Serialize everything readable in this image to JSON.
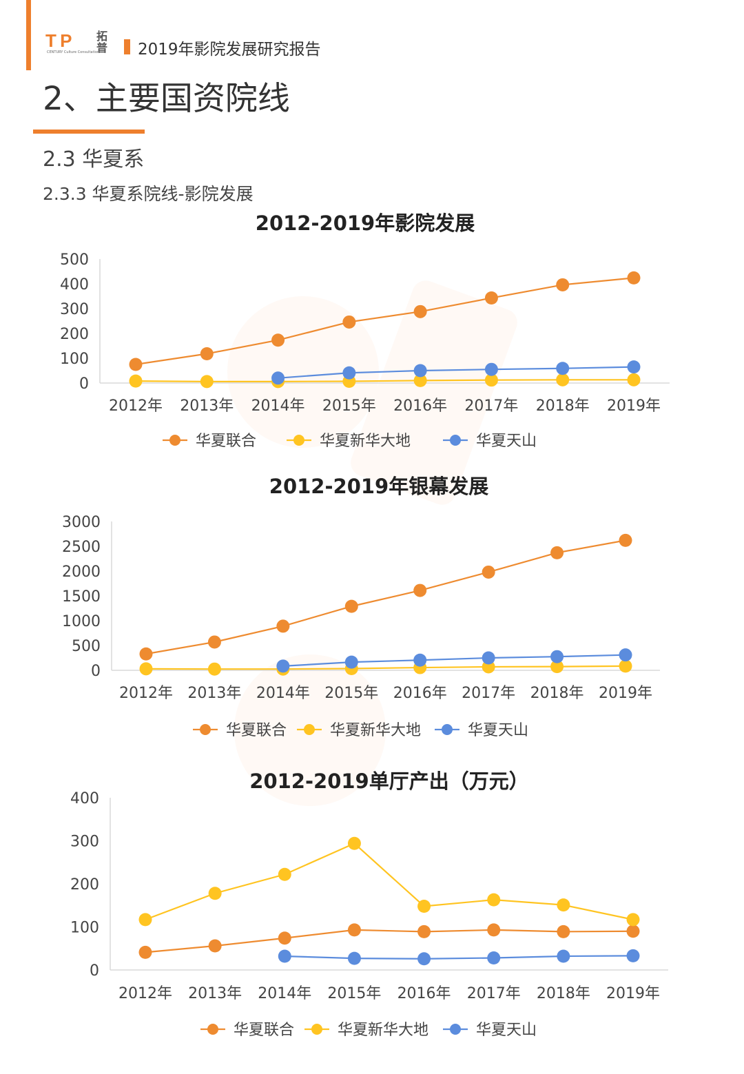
{
  "header": {
    "logo_text": "T P",
    "logo_cn": "拓普",
    "logo_sub": "CENTURY Culture Consultation",
    "report_title": "2019年影院发展研究报告"
  },
  "section": {
    "title": "2、主要国资院线",
    "sub1": "2.3 华夏系",
    "sub2": "2.3.3 华夏系院线-影院发展"
  },
  "colors": {
    "accent": "#EE7F2D",
    "orange": "#EE8B30",
    "yellow": "#FFC421",
    "blue": "#5B8CDD"
  },
  "chart_data": [
    {
      "type": "line",
      "title": "2012-2019年影院发展",
      "categories": [
        "2012年",
        "2013年",
        "2014年",
        "2015年",
        "2016年",
        "2017年",
        "2018年",
        "2019年"
      ],
      "ylim": [
        0,
        500
      ],
      "yticks": [
        "0",
        "100",
        "200",
        "300",
        "400",
        "500"
      ],
      "legend_position": "bottom",
      "series": [
        {
          "name": "华夏联合",
          "color": "#EE8B30",
          "values": [
            75,
            118,
            173,
            246,
            288,
            343,
            396,
            424
          ]
        },
        {
          "name": "华夏新华大地",
          "color": "#FFC421",
          "values": [
            8,
            6,
            6,
            7,
            10,
            12,
            13,
            13
          ]
        },
        {
          "name": "华夏天山",
          "color": "#5B8CDD",
          "values": [
            null,
            null,
            20,
            41,
            50,
            55,
            59,
            65
          ]
        }
      ]
    },
    {
      "type": "line",
      "title": "2012-2019年银幕发展",
      "categories": [
        "2012年",
        "2013年",
        "2014年",
        "2015年",
        "2016年",
        "2017年",
        "2018年",
        "2019年"
      ],
      "ylim": [
        0,
        3000
      ],
      "yticks": [
        "0",
        "500",
        "1000",
        "1500",
        "2000",
        "2500",
        "3000"
      ],
      "legend_position": "bottom",
      "series": [
        {
          "name": "华夏联合",
          "color": "#EE8B30",
          "values": [
            330,
            570,
            890,
            1290,
            1610,
            1980,
            2370,
            2620
          ]
        },
        {
          "name": "华夏新华大地",
          "color": "#FFC421",
          "values": [
            30,
            25,
            25,
            35,
            55,
            70,
            75,
            85
          ]
        },
        {
          "name": "华夏天山",
          "color": "#5B8CDD",
          "values": [
            null,
            null,
            85,
            165,
            205,
            250,
            275,
            310
          ]
        }
      ]
    },
    {
      "type": "line",
      "title": "2012-2019单厅产出（万元）",
      "categories": [
        "2012年",
        "2013年",
        "2014年",
        "2015年",
        "2016年",
        "2017年",
        "2018年",
        "2019年"
      ],
      "ylim": [
        0,
        400
      ],
      "yticks": [
        "0",
        "100",
        "200",
        "300",
        "400"
      ],
      "legend_position": "bottom",
      "series": [
        {
          "name": "华夏联合",
          "color": "#EE8B30",
          "values": [
            41,
            56,
            74,
            93,
            89,
            93,
            89,
            90
          ]
        },
        {
          "name": "华夏新华大地",
          "color": "#FFC421",
          "values": [
            117,
            178,
            222,
            294,
            148,
            163,
            151,
            117
          ]
        },
        {
          "name": "华夏天山",
          "color": "#5B8CDD",
          "values": [
            null,
            null,
            32,
            27,
            26,
            28,
            32,
            33
          ]
        }
      ]
    }
  ]
}
